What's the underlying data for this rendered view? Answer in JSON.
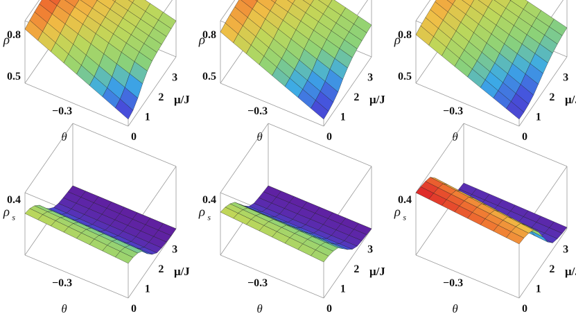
{
  "chart_data": [
    {
      "type": "surface3d",
      "quantity": "rho",
      "zlabel": "ρ",
      "xlabel": "θ",
      "ylabel": "μ/J",
      "z_ticks": [
        "0.8",
        "0.5"
      ],
      "theta_ticks": [
        "-0.3"
      ],
      "mu_ticks": [
        "0",
        "1",
        "2",
        "3"
      ],
      "zlim": [
        0.45,
        0.9
      ],
      "thetalim": [
        -0.5,
        0.0
      ],
      "mulim": [
        0,
        3.5
      ],
      "front_mu": [
        0.0,
        0.5,
        1.0,
        1.5,
        2.0,
        2.5,
        3.0,
        3.5
      ],
      "front_z": [
        0.5,
        0.52,
        0.6,
        0.66,
        0.68,
        0.69,
        0.7,
        0.71
      ],
      "back_z": [
        0.84,
        0.86,
        0.87,
        0.88,
        0.88,
        0.89,
        0.89,
        0.9
      ]
    },
    {
      "type": "surface3d",
      "quantity": "rho",
      "zlabel": "ρ",
      "xlabel": "θ",
      "ylabel": "μ/J",
      "z_ticks": [
        "0.8",
        "0.5"
      ],
      "theta_ticks": [
        "-0.3"
      ],
      "mu_ticks": [
        "0",
        "1",
        "2",
        "3"
      ],
      "zlim": [
        0.45,
        0.9
      ],
      "thetalim": [
        -0.5,
        0.0
      ],
      "mulim": [
        0,
        3.5
      ],
      "front_mu": [
        0.0,
        0.5,
        1.0,
        1.5,
        2.0,
        2.5,
        3.0,
        3.5
      ],
      "front_z": [
        0.5,
        0.51,
        0.54,
        0.6,
        0.64,
        0.66,
        0.67,
        0.68
      ],
      "back_z": [
        0.82,
        0.84,
        0.85,
        0.86,
        0.86,
        0.87,
        0.87,
        0.87
      ]
    },
    {
      "type": "surface3d",
      "quantity": "rho",
      "zlabel": "ρ",
      "xlabel": "θ",
      "ylabel": "μ/J",
      "z_ticks": [
        "0.8",
        "0.5"
      ],
      "theta_ticks": [
        "-0.3"
      ],
      "mu_ticks": [
        "0",
        "1",
        "2",
        "3"
      ],
      "zlim": [
        0.45,
        0.9
      ],
      "thetalim": [
        -0.5,
        0.0
      ],
      "mulim": [
        0,
        3.5
      ],
      "front_mu": [
        0.0,
        0.5,
        1.0,
        1.5,
        2.0,
        2.5,
        3.0,
        3.5
      ],
      "front_z": [
        0.5,
        0.5,
        0.52,
        0.56,
        0.6,
        0.63,
        0.65,
        0.66
      ],
      "back_z": [
        0.8,
        0.82,
        0.83,
        0.84,
        0.84,
        0.85,
        0.85,
        0.85
      ]
    },
    {
      "type": "surface3d",
      "quantity": "rho_s",
      "zlabel": "ρ",
      "zlabel_sub": "s",
      "xlabel": "θ",
      "ylabel": "μ/J",
      "z_ticks": [
        "0.4"
      ],
      "theta_ticks": [
        "-0.3"
      ],
      "mu_ticks": [
        "0",
        "1",
        "2",
        "3"
      ],
      "zlim": [
        0.0,
        0.45
      ],
      "thetalim": [
        -0.5,
        0.0
      ],
      "mulim": [
        0,
        3.5
      ],
      "front_mu": [
        0.0,
        0.5,
        1.0,
        1.5,
        2.0,
        2.5,
        3.0,
        3.5
      ],
      "front_z": [
        0.25,
        0.24,
        0.2,
        0.1,
        0.03,
        0.01,
        0.0,
        0.0
      ],
      "back_z": [
        0.3,
        0.28,
        0.22,
        0.12,
        0.05,
        0.02,
        0.01,
        0.0
      ]
    },
    {
      "type": "surface3d",
      "quantity": "rho_s",
      "zlabel": "ρ",
      "zlabel_sub": "s",
      "xlabel": "θ",
      "ylabel": "μ/J",
      "z_ticks": [
        "0.4"
      ],
      "theta_ticks": [
        "-0.3"
      ],
      "mu_ticks": [
        "0",
        "1",
        "2",
        "3"
      ],
      "zlim": [
        0.0,
        0.45
      ],
      "thetalim": [
        -0.5,
        0.0
      ],
      "mulim": [
        0,
        3.5
      ],
      "front_mu": [
        0.0,
        0.5,
        1.0,
        1.5,
        2.0,
        2.5,
        3.0,
        3.5
      ],
      "front_z": [
        0.26,
        0.25,
        0.22,
        0.14,
        0.06,
        0.02,
        0.01,
        0.0
      ],
      "back_z": [
        0.31,
        0.29,
        0.24,
        0.15,
        0.06,
        0.02,
        0.01,
        0.0
      ]
    },
    {
      "type": "surface3d",
      "quantity": "rho_s",
      "zlabel": "ρ",
      "zlabel_sub": "s",
      "xlabel": "θ",
      "ylabel": "μ/J",
      "z_ticks": [
        "0.4"
      ],
      "theta_ticks": [
        "-0.3"
      ],
      "mu_ticks": [
        "0",
        "1",
        "2",
        "3"
      ],
      "zlim": [
        0.0,
        0.45
      ],
      "thetalim": [
        -0.5,
        0.0
      ],
      "mulim": [
        0,
        3.5
      ],
      "front_mu": [
        0.0,
        0.5,
        1.0,
        1.5,
        2.0,
        2.5,
        3.0,
        3.5
      ],
      "front_z": [
        0.39,
        0.38,
        0.35,
        0.26,
        0.12,
        0.04,
        0.02,
        0.01
      ],
      "back_z": [
        0.45,
        0.44,
        0.42,
        0.34,
        0.18,
        0.06,
        0.03,
        0.02
      ]
    }
  ]
}
